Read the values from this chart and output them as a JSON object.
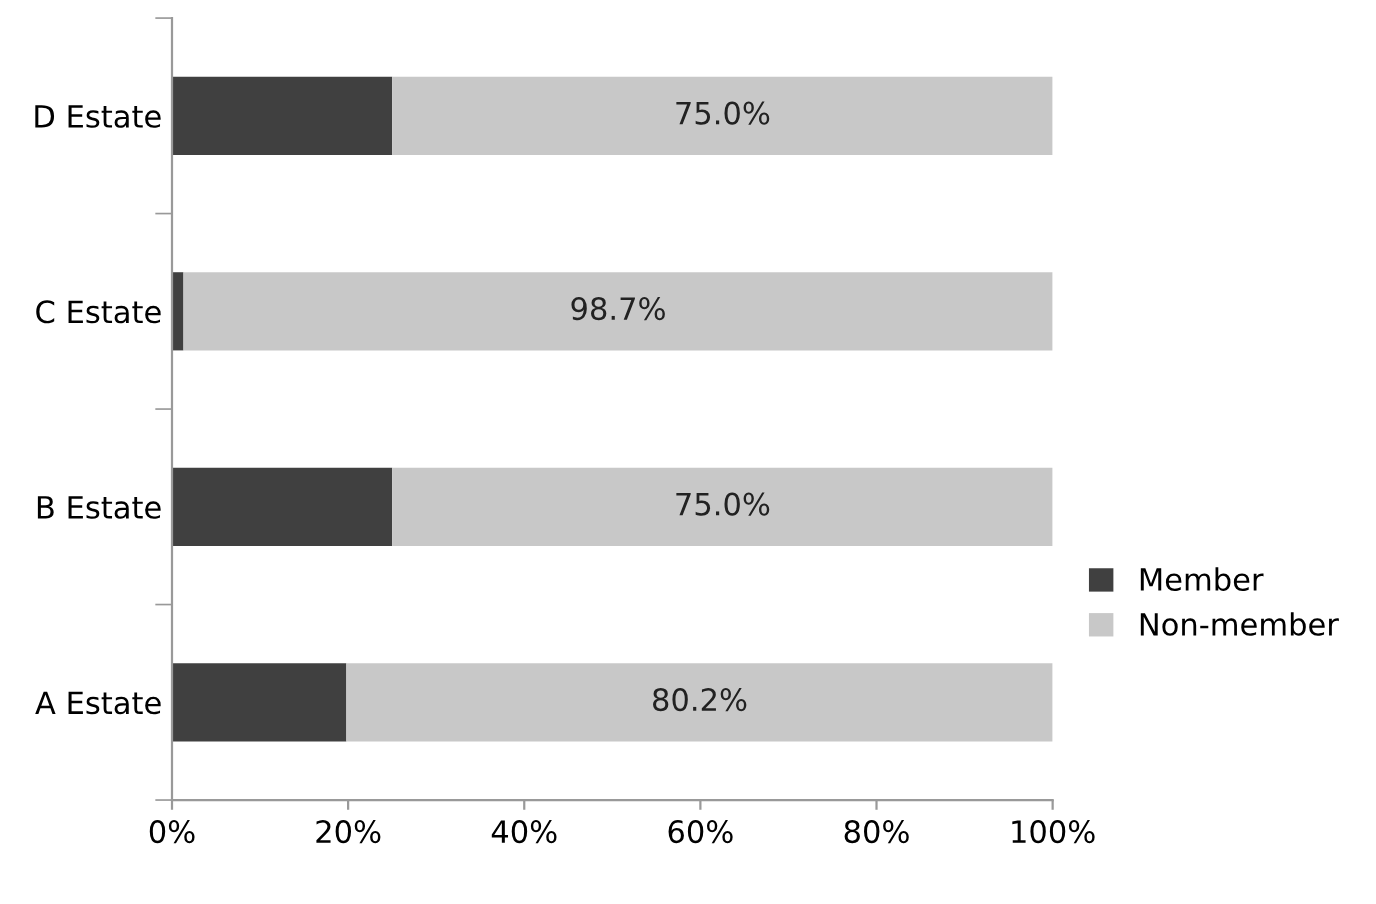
{
  "chart_data": {
    "type": "bar",
    "orientation": "horizontal",
    "stacked": true,
    "categories": [
      "D Estate",
      "C Estate",
      "B Estate",
      "A Estate"
    ],
    "series": [
      {
        "name": "Member",
        "color": "#404040",
        "values": [
          25.0,
          1.3,
          25.0,
          19.8
        ]
      },
      {
        "name": "Non-member",
        "color": "#c8c8c8",
        "values": [
          75.0,
          98.7,
          75.0,
          80.2
        ],
        "value_labels": [
          "75.0%",
          "98.7%",
          "75.0%",
          "80.2%"
        ]
      }
    ],
    "xlim": [
      0,
      100
    ],
    "xticks": [
      {
        "value": 0,
        "label": "0%"
      },
      {
        "value": 20,
        "label": "20%"
      },
      {
        "value": 40,
        "label": "40%"
      },
      {
        "value": 60,
        "label": "60%"
      },
      {
        "value": 80,
        "label": "80%"
      },
      {
        "value": 100,
        "label": "100%"
      }
    ],
    "grid": false,
    "legend": "right"
  }
}
